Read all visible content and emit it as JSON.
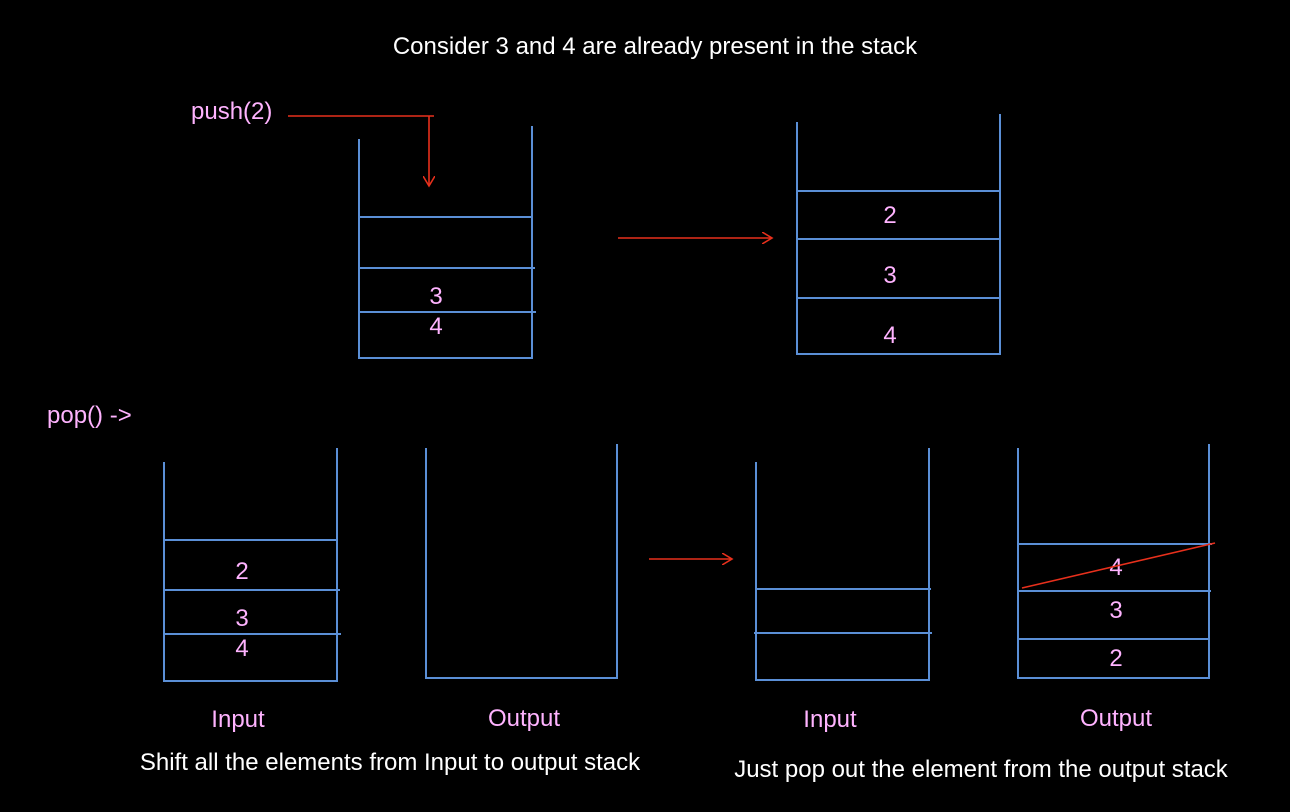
{
  "title": "Consider 3 and 4 are already present in the stack",
  "push_label": "push(2)",
  "pop_label": "pop() ->",
  "top_stack_before": {
    "items": [
      "3",
      "4"
    ]
  },
  "top_stack_after": {
    "items": [
      "2",
      "3",
      "4"
    ]
  },
  "step1": {
    "input_label": "Input",
    "output_label": "Output",
    "input_items": [
      "2",
      "3",
      "4"
    ],
    "output_items": [],
    "caption": "Shift all the elements from Input to output stack"
  },
  "step2": {
    "input_label": "Input",
    "output_label": "Output",
    "input_items": [],
    "output_items": [
      "4",
      "3",
      "2"
    ],
    "popped_item": "4",
    "caption": "Just pop out the element from the output stack"
  },
  "colors": {
    "background": "#000000",
    "stack_border": "#5b8fd6",
    "arrow": "#e8301c",
    "element_text": "#ffb3ff",
    "title_text": "#ffffff"
  }
}
